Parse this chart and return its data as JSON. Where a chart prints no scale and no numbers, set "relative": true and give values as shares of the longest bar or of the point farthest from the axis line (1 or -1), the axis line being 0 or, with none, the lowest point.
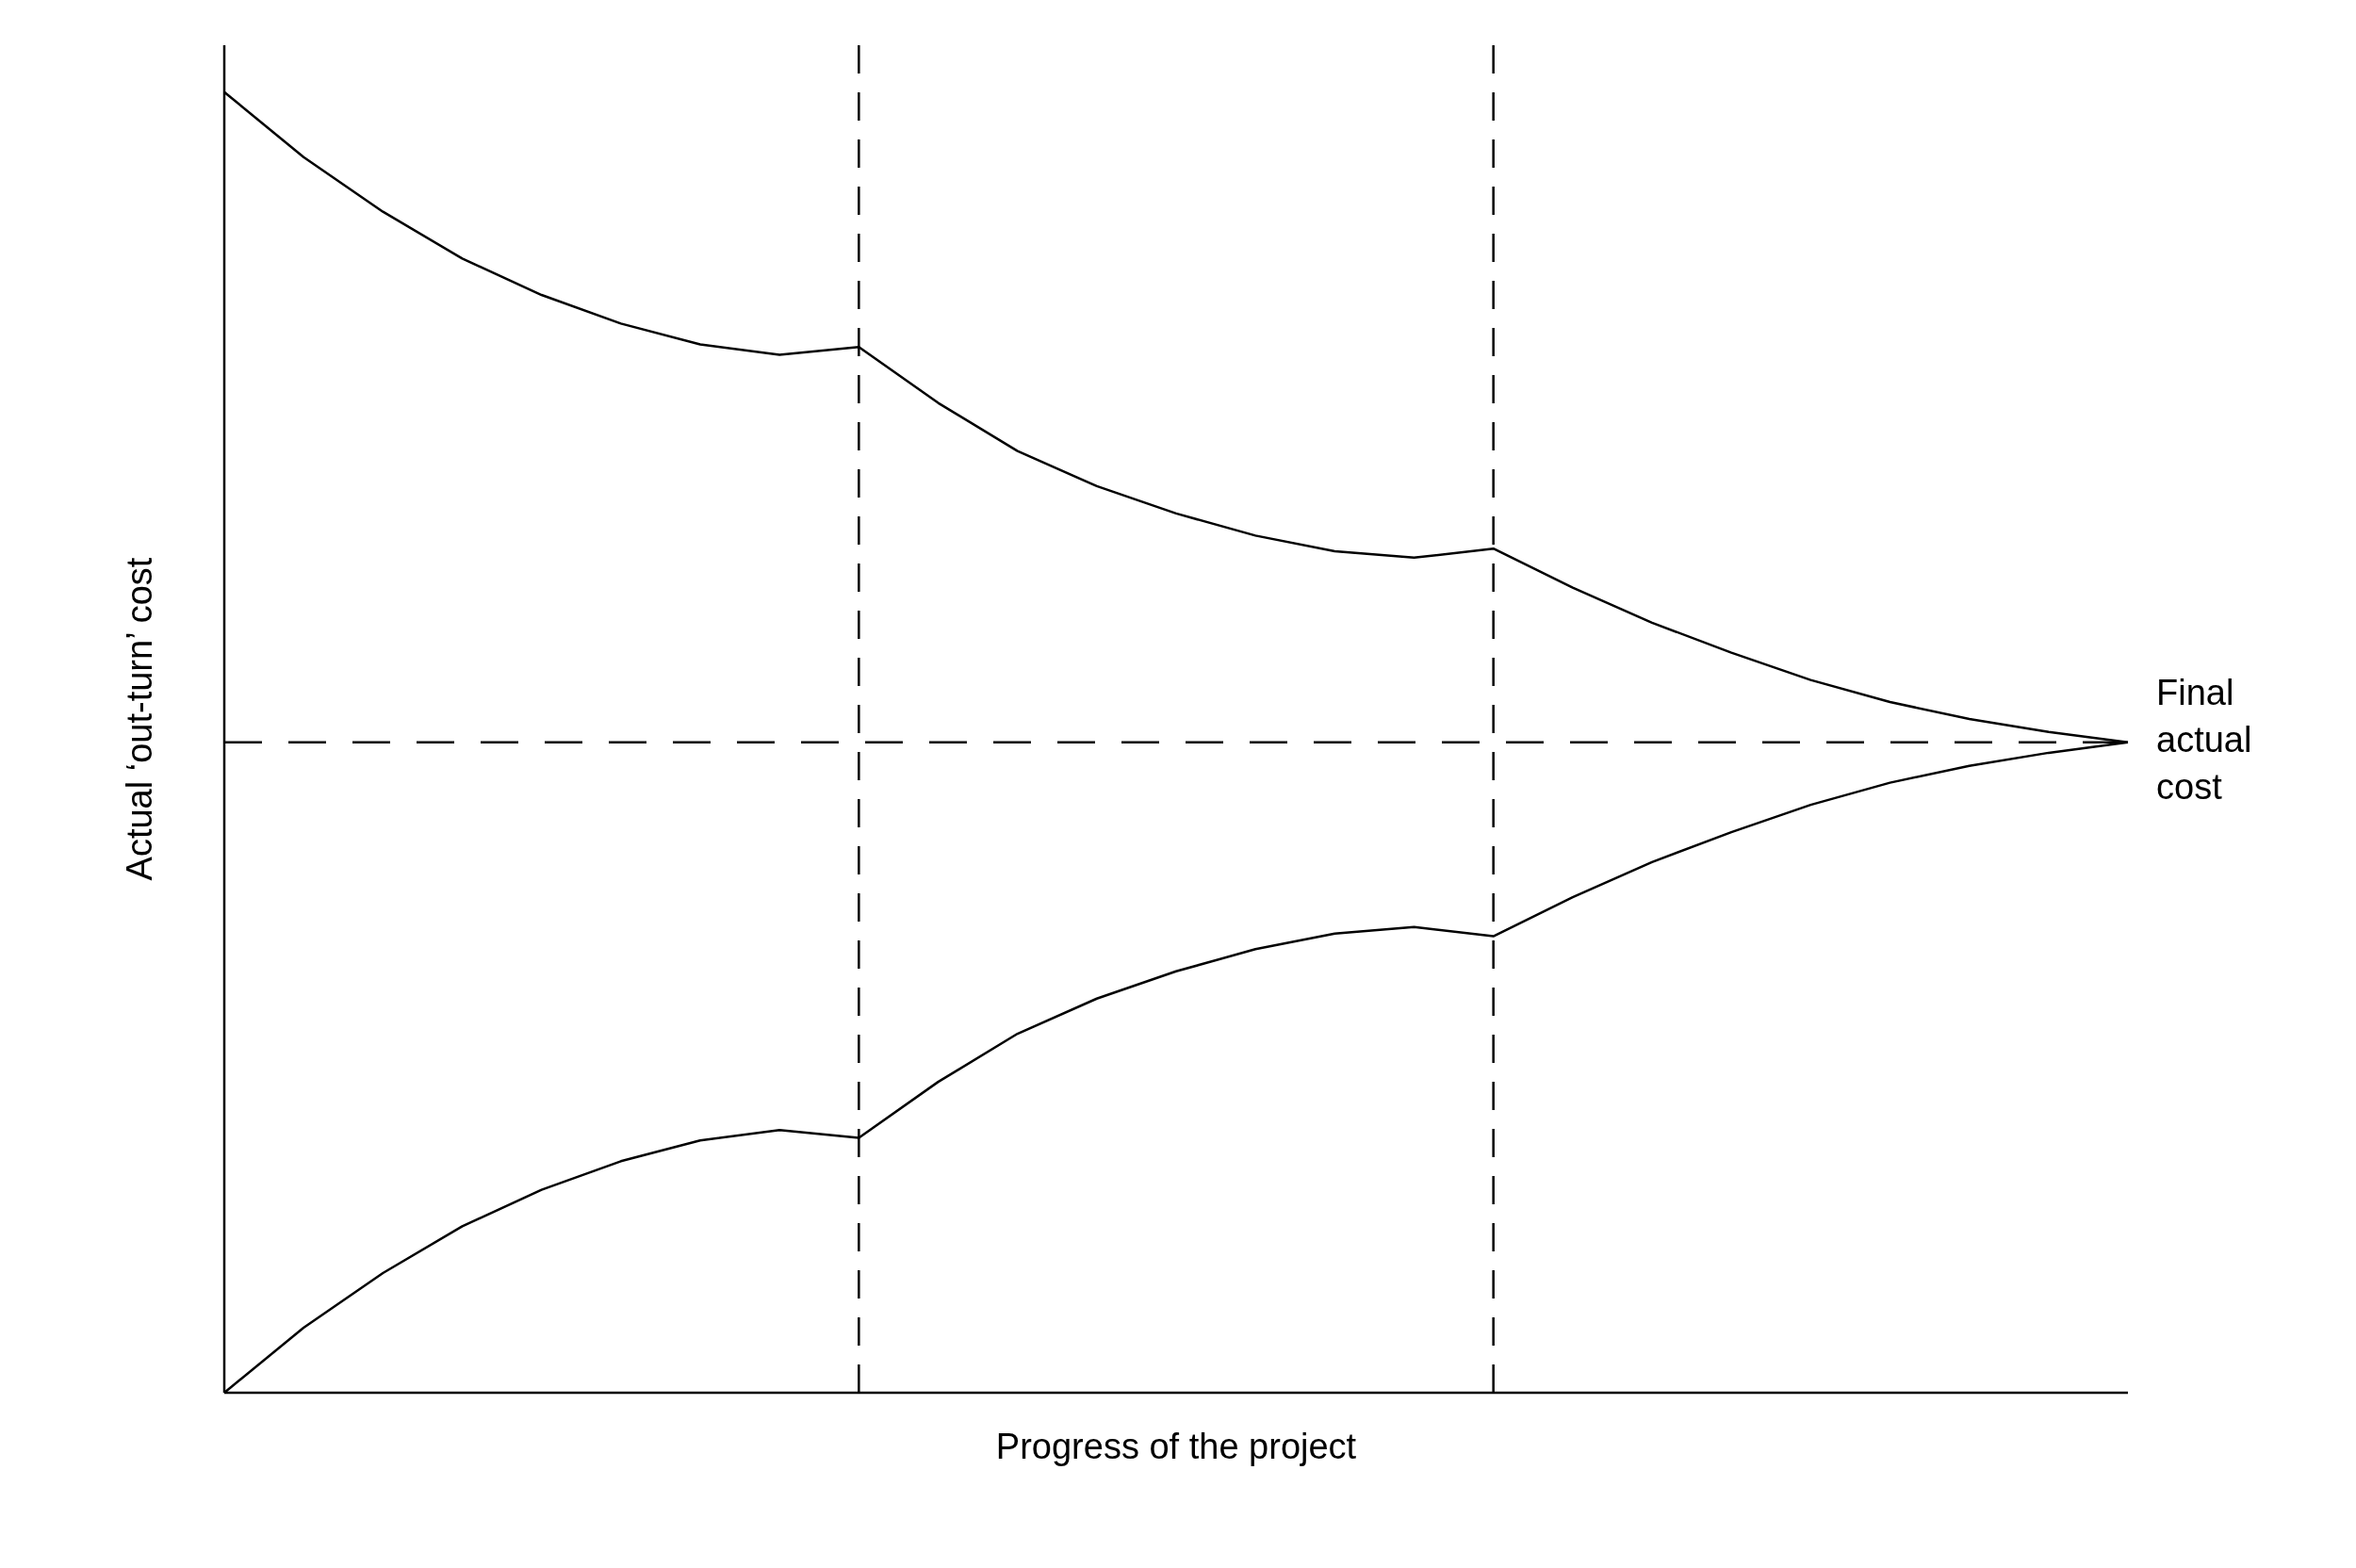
{
  "chart_data": {
    "type": "line",
    "relative": true,
    "xlabel": "Progress of the project",
    "ylabel": "Actual ‘out-turn’ cost",
    "categories": [
      null,
      null,
      null,
      null,
      null,
      null,
      null,
      null,
      null,
      null,
      null,
      null,
      null,
      null,
      null,
      null,
      null,
      null,
      null,
      null,
      null,
      null,
      null,
      null,
      null
    ],
    "series": [
      {
        "color": "#000000",
        "values": [
          1,
          0.95,
          0.908,
          0.872,
          0.844,
          0.822,
          0.806,
          0.798,
          0.804,
          0.761,
          0.724,
          0.697,
          0.676,
          0.659,
          0.647,
          0.642,
          0.649,
          0.619,
          0.592,
          0.569,
          0.548,
          0.531,
          0.518,
          0.508,
          0.5
        ]
      },
      {
        "color": "#000000",
        "values": [
          0,
          0.05,
          0.092,
          0.128,
          0.156,
          0.178,
          0.194,
          0.202,
          0.196,
          0.239,
          0.276,
          0.303,
          0.324,
          0.341,
          0.353,
          0.358,
          0.351,
          0.381,
          0.408,
          0.431,
          0.452,
          0.469,
          0.482,
          0.492,
          0.5
        ]
      }
    ],
    "ref_lines": [
      {
        "axis": "y",
        "value": 0.5,
        "line_style": "dashed",
        "color": "#000000"
      }
    ],
    "annotations": [
      "Final actual cost"
    ],
    "marker": "none",
    "line_style": "solid",
    "grid": false,
    "legend": false
  }
}
